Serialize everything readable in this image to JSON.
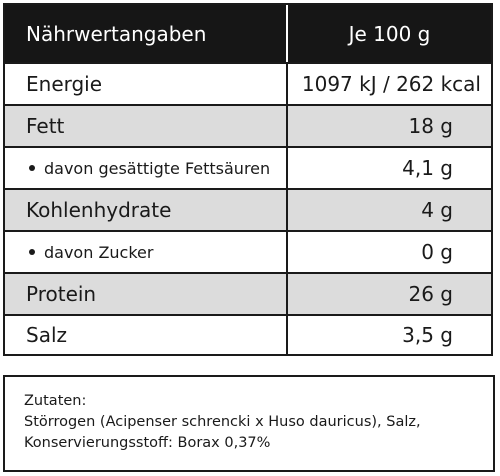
{
  "table": {
    "header": {
      "label": "Nährwertangaben",
      "value": "Je 100 g"
    },
    "rows": [
      {
        "label": "Energie",
        "value": "1097 kJ / 262 kcal"
      },
      {
        "label": "Fett",
        "value": "18 g"
      },
      {
        "label": "davon gesättigte Fettsäuren",
        "value": "4,1 g"
      },
      {
        "label": "Kohlenhydrate",
        "value": "4 g"
      },
      {
        "label": "davon Zucker",
        "value": "0 g"
      },
      {
        "label": "Protein",
        "value": "26 g"
      },
      {
        "label": "Salz",
        "value": "3,5 g"
      }
    ]
  },
  "ingredients": {
    "title": "Zutaten:",
    "line1": "Störrogen (Acipenser schrencki x Huso dauricus), Salz,",
    "line2": "Konservierungsstoff: Borax 0,37%"
  },
  "colors": {
    "header_bg": "#161616",
    "alt_row_bg": "#dcdcdc",
    "border": "#1a1a1a"
  }
}
